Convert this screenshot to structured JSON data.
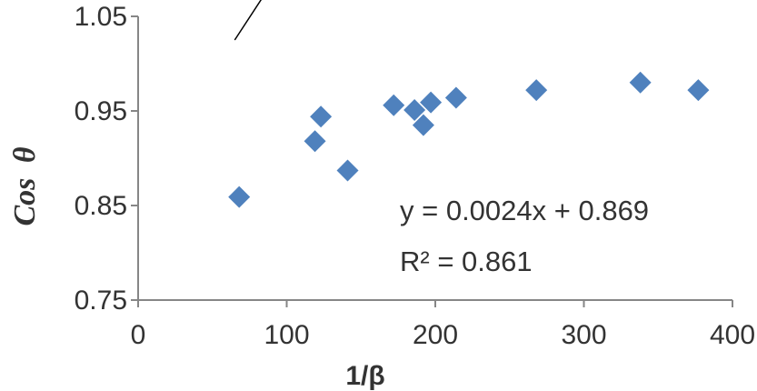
{
  "chart_data": {
    "type": "scatter",
    "xlabel": "1/β",
    "ylabel_text": "Cos",
    "ylabel_symbol": "θ",
    "xlim": [
      0,
      400
    ],
    "ylim": [
      0.75,
      1.05
    ],
    "x_ticks": [
      0,
      100,
      200,
      300,
      400
    ],
    "y_ticks": [
      0.75,
      0.85,
      0.95,
      1.05
    ],
    "x_tick_labels": [
      "0",
      "100",
      "200",
      "300",
      "400"
    ],
    "y_tick_labels": [
      "0.75",
      "0.85",
      "0.95",
      "1.05"
    ],
    "grid": false,
    "marker_color": "#4F81BD",
    "points": [
      {
        "x": 68,
        "y": 0.859
      },
      {
        "x": 119,
        "y": 0.918
      },
      {
        "x": 123,
        "y": 0.944
      },
      {
        "x": 141,
        "y": 0.887
      },
      {
        "x": 172,
        "y": 0.956
      },
      {
        "x": 186,
        "y": 0.951
      },
      {
        "x": 192,
        "y": 0.935
      },
      {
        "x": 197,
        "y": 0.959
      },
      {
        "x": 214,
        "y": 0.964
      },
      {
        "x": 268,
        "y": 0.972
      },
      {
        "x": 338,
        "y": 0.98
      },
      {
        "x": 377,
        "y": 0.972
      }
    ],
    "trendline": {
      "x_start": 65,
      "x_end": 400,
      "slope": 0.0024,
      "intercept": 0.869,
      "equation_label": "y = 0.0024x + 0.869",
      "r2_label": "R² = 0.861"
    }
  }
}
